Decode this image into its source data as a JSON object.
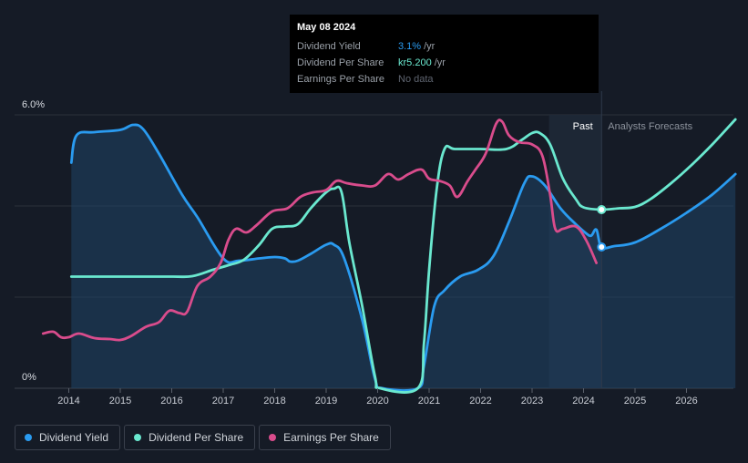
{
  "tooltip": {
    "date": "May 08 2024",
    "rows": [
      {
        "label": "Dividend Yield",
        "value": "3.1%",
        "unit": "/yr"
      },
      {
        "label": "Dividend Per Share",
        "value": "kr5.200",
        "unit": "/yr"
      },
      {
        "label": "Earnings Per Share",
        "value": "No data",
        "unit": ""
      }
    ]
  },
  "regions": {
    "past": "Past",
    "forecast": "Analysts Forecasts"
  },
  "legend": [
    {
      "label": "Dividend Yield",
      "color": "#2a9bf0"
    },
    {
      "label": "Dividend Per Share",
      "color": "#6ae8cf"
    },
    {
      "label": "Earnings Per Share",
      "color": "#d94c8c"
    }
  ],
  "chart_data": {
    "type": "line",
    "y_tick_labels": [
      "6.0%",
      "0%"
    ],
    "ylim": [
      0,
      6.0
    ],
    "xlim": [
      2013.5,
      2026.95
    ],
    "x_ticks": [
      2014,
      2015,
      2016,
      2017,
      2018,
      2019,
      2020,
      2021,
      2022,
      2023,
      2024,
      2025,
      2026
    ],
    "forecast_start": 2023.33,
    "marker_date": 2024.35,
    "grid": true,
    "series": [
      {
        "name": "Dividend Yield",
        "color": "#2a9bf0",
        "axis_units": "percent",
        "points": [
          [
            2014.05,
            4.95
          ],
          [
            2014.15,
            5.55
          ],
          [
            2014.5,
            5.62
          ],
          [
            2015.0,
            5.67
          ],
          [
            2015.25,
            5.78
          ],
          [
            2015.45,
            5.68
          ],
          [
            2015.75,
            5.15
          ],
          [
            2016.2,
            4.25
          ],
          [
            2016.5,
            3.75
          ],
          [
            2017.0,
            2.85
          ],
          [
            2017.3,
            2.8
          ],
          [
            2017.7,
            2.85
          ],
          [
            2018.0,
            2.88
          ],
          [
            2018.2,
            2.85
          ],
          [
            2018.3,
            2.78
          ],
          [
            2018.45,
            2.8
          ],
          [
            2018.7,
            2.95
          ],
          [
            2019.0,
            3.15
          ],
          [
            2019.15,
            3.15
          ],
          [
            2019.35,
            2.85
          ],
          [
            2019.7,
            1.5
          ],
          [
            2019.95,
            0.2
          ],
          [
            2020.1,
            0.0
          ],
          [
            2020.78,
            0.0
          ],
          [
            2020.9,
            0.5
          ],
          [
            2021.1,
            1.8
          ],
          [
            2021.3,
            2.15
          ],
          [
            2021.6,
            2.45
          ],
          [
            2021.95,
            2.6
          ],
          [
            2022.25,
            2.9
          ],
          [
            2022.55,
            3.65
          ],
          [
            2022.85,
            4.5
          ],
          [
            2023.0,
            4.65
          ],
          [
            2023.25,
            4.45
          ],
          [
            2023.55,
            3.95
          ],
          [
            2023.85,
            3.6
          ],
          [
            2024.05,
            3.4
          ],
          [
            2024.15,
            3.35
          ],
          [
            2024.25,
            3.48
          ],
          [
            2024.35,
            3.1
          ],
          [
            2024.6,
            3.12
          ],
          [
            2025.0,
            3.2
          ],
          [
            2025.5,
            3.5
          ],
          [
            2026.0,
            3.85
          ],
          [
            2026.5,
            4.25
          ],
          [
            2026.95,
            4.7
          ]
        ]
      },
      {
        "name": "Dividend Per Share",
        "color": "#6ae8cf",
        "axis_units": "percent-scaled",
        "points": [
          [
            2014.05,
            2.45
          ],
          [
            2015.0,
            2.45
          ],
          [
            2016.0,
            2.45
          ],
          [
            2016.4,
            2.46
          ],
          [
            2016.8,
            2.6
          ],
          [
            2017.1,
            2.7
          ],
          [
            2017.4,
            2.82
          ],
          [
            2017.7,
            3.15
          ],
          [
            2017.95,
            3.5
          ],
          [
            2018.2,
            3.55
          ],
          [
            2018.45,
            3.6
          ],
          [
            2018.7,
            3.95
          ],
          [
            2019.0,
            4.3
          ],
          [
            2019.15,
            4.38
          ],
          [
            2019.3,
            4.3
          ],
          [
            2019.45,
            3.2
          ],
          [
            2019.7,
            1.8
          ],
          [
            2019.95,
            0.25
          ],
          [
            2020.05,
            0.0
          ],
          [
            2020.78,
            0.0
          ],
          [
            2020.9,
            1.0
          ],
          [
            2021.0,
            2.6
          ],
          [
            2021.15,
            4.4
          ],
          [
            2021.3,
            5.25
          ],
          [
            2021.5,
            5.25
          ],
          [
            2022.0,
            5.25
          ],
          [
            2022.5,
            5.25
          ],
          [
            2022.8,
            5.45
          ],
          [
            2023.0,
            5.6
          ],
          [
            2023.15,
            5.6
          ],
          [
            2023.35,
            5.35
          ],
          [
            2023.6,
            4.6
          ],
          [
            2023.85,
            4.15
          ],
          [
            2024.0,
            3.97
          ],
          [
            2024.35,
            3.92
          ],
          [
            2024.7,
            3.95
          ],
          [
            2025.0,
            3.98
          ],
          [
            2025.3,
            4.15
          ],
          [
            2025.7,
            4.5
          ],
          [
            2026.1,
            4.9
          ],
          [
            2026.5,
            5.35
          ],
          [
            2026.95,
            5.9
          ]
        ]
      },
      {
        "name": "Earnings Per Share",
        "color": "#d94c8c",
        "axis_units": "percent-scaled",
        "points": [
          [
            2013.5,
            1.2
          ],
          [
            2013.7,
            1.24
          ],
          [
            2013.85,
            1.12
          ],
          [
            2014.0,
            1.12
          ],
          [
            2014.2,
            1.2
          ],
          [
            2014.5,
            1.1
          ],
          [
            2014.8,
            1.08
          ],
          [
            2015.0,
            1.06
          ],
          [
            2015.2,
            1.14
          ],
          [
            2015.5,
            1.35
          ],
          [
            2015.75,
            1.45
          ],
          [
            2015.95,
            1.7
          ],
          [
            2016.15,
            1.65
          ],
          [
            2016.3,
            1.68
          ],
          [
            2016.5,
            2.25
          ],
          [
            2016.75,
            2.45
          ],
          [
            2016.95,
            2.75
          ],
          [
            2017.1,
            3.25
          ],
          [
            2017.25,
            3.5
          ],
          [
            2017.45,
            3.42
          ],
          [
            2017.65,
            3.58
          ],
          [
            2017.95,
            3.88
          ],
          [
            2018.25,
            3.95
          ],
          [
            2018.5,
            4.2
          ],
          [
            2018.75,
            4.3
          ],
          [
            2019.0,
            4.35
          ],
          [
            2019.2,
            4.55
          ],
          [
            2019.4,
            4.5
          ],
          [
            2019.7,
            4.45
          ],
          [
            2019.95,
            4.45
          ],
          [
            2020.2,
            4.7
          ],
          [
            2020.4,
            4.58
          ],
          [
            2020.6,
            4.7
          ],
          [
            2020.85,
            4.8
          ],
          [
            2021.0,
            4.6
          ],
          [
            2021.2,
            4.55
          ],
          [
            2021.4,
            4.45
          ],
          [
            2021.55,
            4.2
          ],
          [
            2021.75,
            4.55
          ],
          [
            2021.9,
            4.8
          ],
          [
            2022.1,
            5.15
          ],
          [
            2022.3,
            5.8
          ],
          [
            2022.42,
            5.85
          ],
          [
            2022.55,
            5.55
          ],
          [
            2022.75,
            5.4
          ],
          [
            2023.0,
            5.35
          ],
          [
            2023.2,
            5.1
          ],
          [
            2023.35,
            4.25
          ],
          [
            2023.45,
            3.5
          ],
          [
            2023.6,
            3.5
          ],
          [
            2023.85,
            3.55
          ],
          [
            2024.05,
            3.25
          ],
          [
            2024.25,
            2.75
          ]
        ]
      }
    ]
  }
}
